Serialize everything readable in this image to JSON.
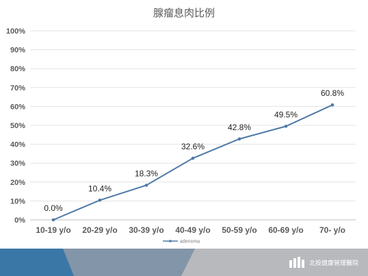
{
  "chart_data": {
    "type": "line",
    "title": "腺瘤息肉比例",
    "xlabel": "",
    "ylabel": "",
    "categories": [
      "10-19 y/o",
      "20-29 y/o",
      "30-39 y/o",
      "40-49 y/o",
      "50-59 y/o",
      "60-69 y/o",
      "70- y/o"
    ],
    "series": [
      {
        "name": "adenoma",
        "values": [
          0.0,
          10.4,
          18.3,
          32.6,
          42.8,
          49.5,
          60.8
        ],
        "labels": [
          "0.0%",
          "10.4%",
          "18.3%",
          "32.6%",
          "42.8%",
          "49.5%",
          "60.8%"
        ],
        "color": "#4e79a7"
      }
    ],
    "ylim": [
      0,
      100
    ],
    "yticks": [
      "0%",
      "10%",
      "20%",
      "30%",
      "40%",
      "50%",
      "60%",
      "70%",
      "80%",
      "90%",
      "100%"
    ],
    "grid": true,
    "legend_position": "bottom"
  },
  "footer": {
    "brand": "北投健康管理醫院",
    "colors": {
      "blue": "#3b77a6",
      "slate": "#8395a8",
      "gray": "#b8b9bd"
    },
    "logo_icon": "building-icon"
  }
}
